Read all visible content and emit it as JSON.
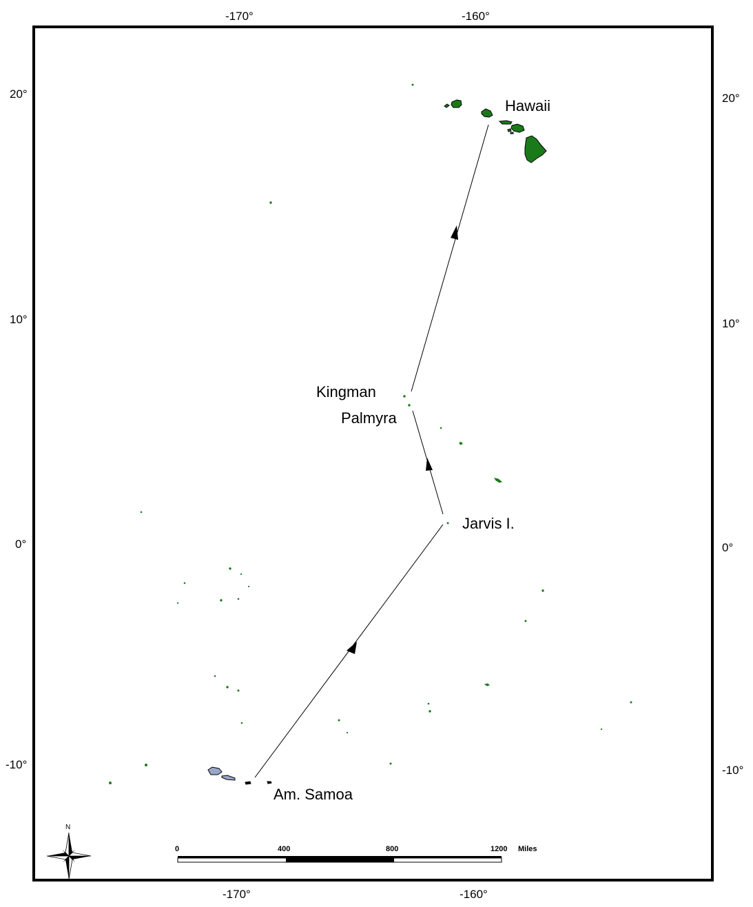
{
  "axes": {
    "lon_top": [
      "-170°",
      "-160°"
    ],
    "lon_bottom": [
      "-170°",
      "-160°"
    ],
    "lat_left": [
      "20°",
      "10°",
      "0°",
      "-10°"
    ],
    "lat_right": [
      "20°",
      "10°",
      "0°",
      "-10°"
    ]
  },
  "places": {
    "hawaii": "Hawaii",
    "kingman": "Kingman",
    "palmyra": "Palmyra",
    "jarvis": "Jarvis I.",
    "samoa": "Am. Samoa"
  },
  "scale_bar": {
    "labels": [
      "0",
      "400",
      "800",
      "1200"
    ],
    "unit": "Miles"
  },
  "compass": {
    "north_label": "N"
  },
  "colors": {
    "land": "#1a7a1a",
    "samoa_land": "#9aa6c8",
    "frame": "#000000",
    "route": "#000000"
  }
}
